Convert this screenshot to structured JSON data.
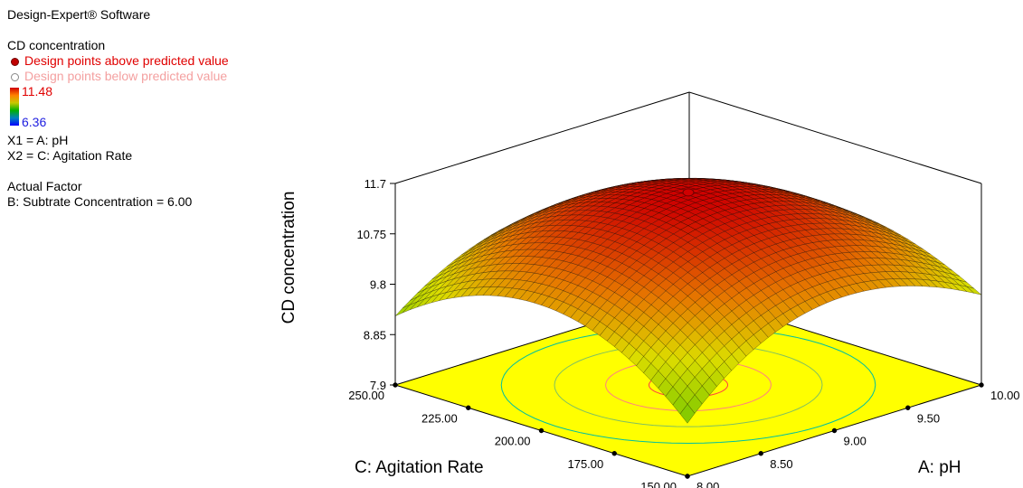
{
  "software_label": "Design-Expert® Software",
  "legend": {
    "response_name": "CD concentration",
    "above_label": "Design points above predicted value",
    "below_label": "Design points below predicted value",
    "gradient_max": "11.48",
    "gradient_min": "6.36",
    "gradient_colors": [
      "#d00000",
      "#ff8000",
      "#c8c800",
      "#00b000",
      "#0080c0",
      "#0000ff"
    ],
    "x1_label": "X1 = A: pH",
    "x2_label": "X2 = C: Agitation Rate",
    "actual_factor_title": "Actual Factor",
    "actual_factor_value": "B: Subtrate Concentration  = 6.00"
  },
  "chart_data": {
    "type": "surface",
    "title": "",
    "zlabel": "CD concentration",
    "xlabel": "A: pH",
    "ylabel": "C: Agitation Rate",
    "x_range": [
      8.0,
      10.0
    ],
    "y_range": [
      150,
      250
    ],
    "z_range": [
      7.9,
      11.7
    ],
    "x_ticks": [
      "8.00",
      "8.50",
      "9.00",
      "9.50",
      "10.00"
    ],
    "y_ticks": [
      "150.00",
      "175.00",
      "200.00",
      "225.00",
      "250.00"
    ],
    "z_ticks": [
      "7.9",
      "8.85",
      "9.8",
      "10.75",
      "11.7"
    ],
    "surface_corners": {
      "x8_y150": 8.9,
      "x10_y150": 9.6,
      "x8_y250": 9.2,
      "x10_y250": 9.0
    },
    "surface_peak": {
      "x": 9.0,
      "y": 200,
      "z": 11.48
    },
    "design_point": {
      "x": 9.0,
      "y": 200,
      "z": 11.48,
      "kind": "above"
    },
    "floor_color": "#ffff00",
    "contour_colors": [
      "#ff4040",
      "#ff8080",
      "#80c060",
      "#00c0a0"
    ]
  }
}
